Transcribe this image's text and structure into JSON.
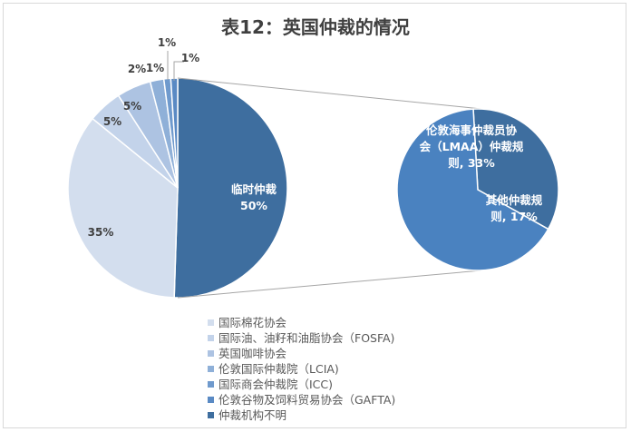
{
  "chart_data": {
    "type": "pie",
    "subtype": "pie-of-pie",
    "title": "表12：英国仲裁的情况",
    "main_pie": [
      {
        "name": "国际棉花协会",
        "value": 35,
        "label": "35%",
        "color": "#d3deee"
      },
      {
        "name": "国际油、油籽和油脂协会（FOSFA)",
        "value": 5,
        "label": "5%",
        "color": "#c3d3ea"
      },
      {
        "name": "英国咖啡协会",
        "value": 5,
        "label": "5%",
        "color": "#adc3e2"
      },
      {
        "name": "伦敦国际仲裁院（LCIA)",
        "value": 2,
        "label": "2%",
        "color": "#8fb0d8"
      },
      {
        "name": "国际商会仲裁院（ICC)",
        "value": 1,
        "label": "1%",
        "color": "#6f9acd"
      },
      {
        "name": "伦敦谷物及饲料贸易协会（GAFTA)",
        "value": 1,
        "label": "1%",
        "color": "#5a8ac4"
      },
      {
        "name": "临时仲裁",
        "value": 50,
        "label": "临时仲裁\n50%",
        "color": "#3e6e9f"
      }
    ],
    "sub_pie": [
      {
        "name": "伦敦海事仲裁员协会（LMAA）仲裁规则",
        "value": 33,
        "label": "伦敦海事仲裁员协\n会（LMAA）仲裁规\n则, 33%",
        "color": "#4a82c0"
      },
      {
        "name": "其他仲裁规则",
        "value": 17,
        "label": "其他仲裁规\n则, 17%",
        "color": "#3e6e9f"
      }
    ],
    "legend": [
      {
        "label": "国际棉花协会",
        "color": "#d3deee"
      },
      {
        "label": "国际油、油籽和油脂协会（FOSFA)",
        "color": "#c3d3ea"
      },
      {
        "label": "英国咖啡协会",
        "color": "#adc3e2"
      },
      {
        "label": "伦敦国际仲裁院（LCIA)",
        "color": "#8fb0d8"
      },
      {
        "label": "国际商会仲裁院（ICC)",
        "color": "#6f9acd"
      },
      {
        "label": "伦敦谷物及饲料贸易协会（GAFTA)",
        "color": "#5a8ac4"
      },
      {
        "label": "仲裁机构不明",
        "color": "#3e6e9f"
      }
    ],
    "legend_position": "bottom"
  }
}
